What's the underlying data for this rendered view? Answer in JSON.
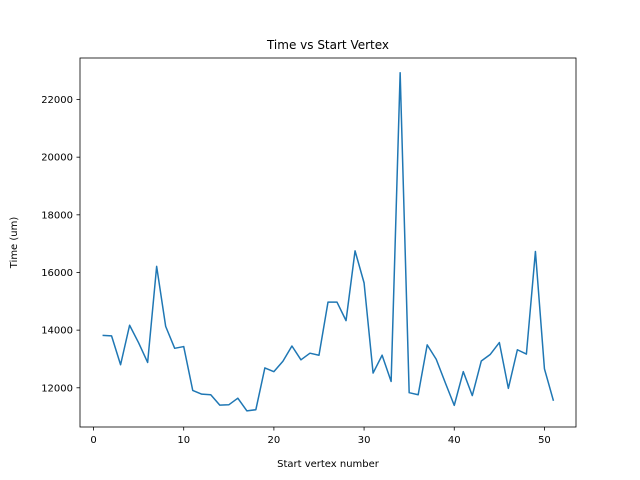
{
  "chart_data": {
    "type": "line",
    "title": "Time vs Start Vertex",
    "xlabel": "Start vertex number",
    "ylabel": "Time (um)",
    "xlim": [
      -1.5,
      53.5
    ],
    "ylim": [
      10640,
      23440
    ],
    "xticks": [
      0,
      10,
      20,
      30,
      40,
      50
    ],
    "yticks": [
      12000,
      14000,
      16000,
      18000,
      20000,
      22000
    ],
    "grid": false,
    "series": [
      {
        "color": "#1f77b4",
        "x": [
          1,
          2,
          3,
          4,
          5,
          6,
          7,
          8,
          9,
          10,
          11,
          12,
          13,
          14,
          15,
          16,
          17,
          18,
          19,
          20,
          21,
          22,
          23,
          24,
          25,
          26,
          27,
          28,
          29,
          30,
          31,
          32,
          33,
          34,
          35,
          36,
          37,
          38,
          39,
          40,
          41,
          42,
          43,
          44,
          45,
          46,
          47,
          48,
          49,
          50,
          51
        ],
        "y": [
          13820,
          13800,
          12800,
          14170,
          13560,
          12880,
          16210,
          14130,
          13370,
          13430,
          11910,
          11780,
          11760,
          11400,
          11410,
          11640,
          11200,
          11240,
          12690,
          12560,
          12920,
          13450,
          12970,
          13200,
          13130,
          14970,
          14970,
          14330,
          16750,
          15640,
          12510,
          13130,
          12220,
          22930,
          11830,
          11760,
          13490,
          12990,
          12180,
          11390,
          12560,
          11730,
          12930,
          13160,
          13570,
          11980,
          13320,
          13170,
          16730,
          12660,
          11550
        ]
      }
    ]
  }
}
